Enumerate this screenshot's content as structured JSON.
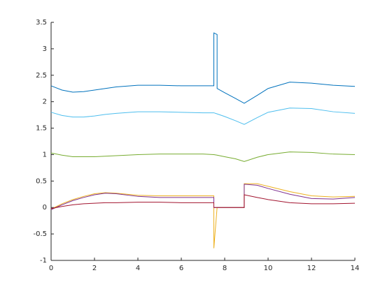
{
  "chart_data": {
    "type": "line",
    "x": [
      0,
      0.5,
      1,
      1.5,
      2,
      2.5,
      3,
      4,
      5,
      6,
      7,
      7.5,
      7.5,
      7.65,
      7.65,
      8,
      8.5,
      8.9,
      8.9,
      9.5,
      10,
      11,
      12,
      13,
      14
    ],
    "series": [
      {
        "color": "#0072BD",
        "values": [
          2.3,
          2.22,
          2.18,
          2.19,
          2.22,
          2.25,
          2.28,
          2.31,
          2.31,
          2.3,
          2.3,
          2.3,
          3.3,
          3.27,
          2.25,
          2.17,
          2.06,
          1.97,
          1.97,
          2.12,
          2.25,
          2.37,
          2.35,
          2.31,
          2.29
        ]
      },
      {
        "color": "#4DBEEE",
        "values": [
          1.8,
          1.74,
          1.71,
          1.71,
          1.73,
          1.76,
          1.78,
          1.81,
          1.81,
          1.8,
          1.79,
          1.79,
          1.79,
          1.77,
          1.77,
          1.72,
          1.64,
          1.57,
          1.57,
          1.7,
          1.8,
          1.88,
          1.87,
          1.81,
          1.78
        ]
      },
      {
        "color": "#77AC30",
        "values": [
          1.03,
          0.99,
          0.96,
          0.96,
          0.96,
          0.97,
          0.98,
          1.0,
          1.01,
          1.01,
          1.01,
          1.0,
          1.0,
          0.99,
          0.99,
          0.96,
          0.92,
          0.87,
          0.87,
          0.95,
          1.0,
          1.05,
          1.04,
          1.01,
          1.0
        ]
      },
      {
        "color": "#EDB120",
        "values": [
          -0.03,
          0.07,
          0.15,
          0.21,
          0.26,
          0.28,
          0.27,
          0.23,
          0.22,
          0.22,
          0.22,
          0.22,
          -0.77,
          0,
          0,
          0,
          0,
          0,
          0.45,
          0.45,
          0.4,
          0.3,
          0.22,
          0.2,
          0.21
        ]
      },
      {
        "color": "#7E2F8E",
        "values": [
          -0.04,
          0.05,
          0.13,
          0.19,
          0.24,
          0.27,
          0.26,
          0.21,
          0.19,
          0.19,
          0.19,
          0.19,
          0,
          0,
          0,
          0,
          0,
          0,
          0.44,
          0.42,
          0.36,
          0.25,
          0.17,
          0.16,
          0.19
        ]
      },
      {
        "color": "#A2142F",
        "values": [
          -0.02,
          0.02,
          0.05,
          0.07,
          0.08,
          0.09,
          0.09,
          0.1,
          0.1,
          0.09,
          0.09,
          0.09,
          0,
          0,
          0,
          0,
          0,
          0,
          0.24,
          0.19,
          0.15,
          0.09,
          0.07,
          0.07,
          0.08
        ]
      }
    ],
    "xlim": [
      0,
      14
    ],
    "xticks": [
      0,
      2,
      4,
      6,
      8,
      10,
      12,
      14
    ],
    "ylim": [
      -1,
      3.5
    ],
    "yticks": [
      -1,
      -0.5,
      0,
      0.5,
      1,
      1.5,
      2,
      2.5,
      3,
      3.5
    ],
    "grid": false
  }
}
